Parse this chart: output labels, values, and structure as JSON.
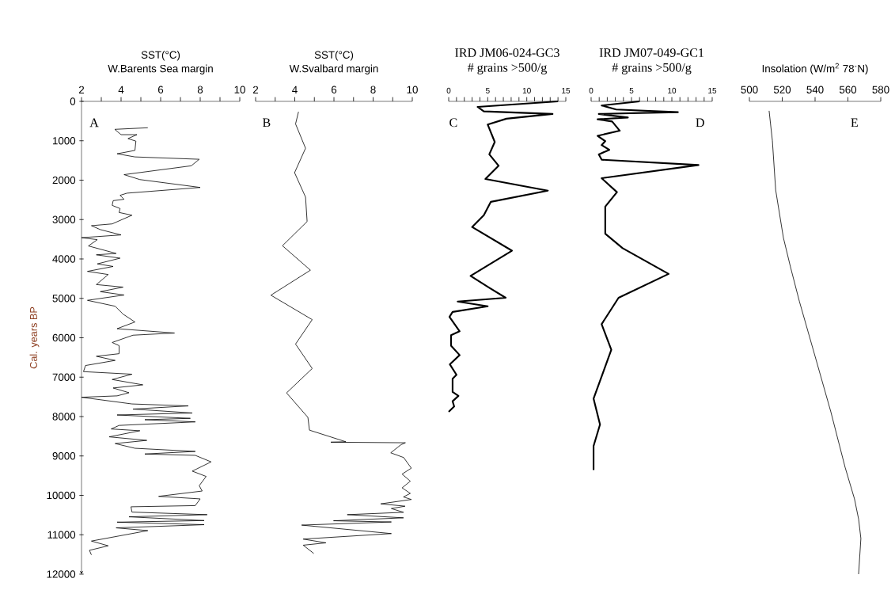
{
  "chart_data": [
    {
      "type": "line",
      "title": "SST(°C)",
      "subtitle": "W.Barents Sea margin",
      "ylabel": "Cal. years BP",
      "annotations": [
        "A"
      ],
      "series": [
        {
          "color": "#000000",
          "x": [
            5.35,
            3.68,
            4.0,
            4.8,
            4.35,
            4.75,
            4.7,
            3.8,
            4.7,
            7.95,
            7.55,
            4.15,
            4.95,
            8.0,
            4.3,
            3.95,
            4.15,
            3.6,
            3.55,
            3.95,
            3.9,
            4.55,
            3.55,
            2.5,
            2.95,
            4.0,
            2.0,
            2.8,
            2.35,
            3.75,
            2.75,
            3.95,
            2.8,
            3.6,
            2.3,
            3.35,
            2.75,
            4.1,
            2.95,
            4.15,
            2.3,
            3.7,
            4.1,
            4.7,
            3.8,
            6.7,
            4.6,
            3.55,
            3.9,
            3.9,
            2.75,
            3.7,
            2.2,
            2.1,
            4.55,
            3.55,
            5.1,
            3.6,
            4.4,
            3.8,
            2.0,
            4.55,
            7.4,
            4.6,
            7.6,
            3.8,
            7.5,
            5.2,
            7.75,
            3.9,
            3.5,
            4.95,
            3.4,
            5.3,
            3.7,
            4.7,
            7.75,
            5.2,
            7.75,
            8.55,
            7.6,
            8.3,
            7.95,
            8.1,
            5.9,
            8.0,
            7.75,
            4.5,
            4.55,
            8.35,
            4.4,
            8.2,
            3.8,
            8.2,
            3.75,
            5.35,
            3.9,
            2.5,
            3.35,
            2.4,
            2.5
          ],
          "values": [
            670,
            710,
            845,
            845,
            945,
            1010,
            1245,
            1330,
            1410,
            1470,
            1635,
            1860,
            1985,
            2185,
            2330,
            2385,
            2485,
            2520,
            2640,
            2720,
            2820,
            2890,
            3110,
            3155,
            3255,
            3390,
            3460,
            3510,
            3670,
            3860,
            3895,
            3980,
            4125,
            4190,
            4315,
            4395,
            4650,
            4715,
            4830,
            4915,
            5050,
            5200,
            5400,
            5600,
            5770,
            5880,
            5935,
            6120,
            6200,
            6405,
            6470,
            6575,
            6705,
            6860,
            6925,
            7060,
            7195,
            7275,
            7395,
            7475,
            7510,
            7680,
            7730,
            7810,
            7910,
            7960,
            8045,
            8080,
            8135,
            8225,
            8315,
            8360,
            8515,
            8605,
            8685,
            8805,
            8885,
            8950,
            8985,
            9150,
            9385,
            9520,
            9755,
            9890,
            10025,
            10090,
            10260,
            10290,
            10425,
            10490,
            10545,
            10640,
            10680,
            10745,
            10825,
            10895,
            11030,
            11160,
            11280,
            11395,
            11510
          ]
        }
      ],
      "xlim": [
        2,
        10
      ],
      "xticks": [
        2,
        {
          "value": 3,
          "label": null
        },
        4,
        {
          "value": 5,
          "label": null
        },
        6,
        {
          "value": 7,
          "label": null
        },
        8,
        {
          "value": 9,
          "label": null
        },
        10
      ],
      "ylim": [
        12000,
        0
      ],
      "yticks": [
        0,
        1000,
        2000,
        3000,
        4000,
        5000,
        6000,
        7000,
        8000,
        9000,
        10000,
        11000,
        12000
      ]
    },
    {
      "type": "line",
      "title": "SST(°C)",
      "subtitle": "W.Svalbard margin",
      "annotations": [
        "B"
      ],
      "series": [
        {
          "color": "#000000",
          "x": [
            4.19,
            4.04,
            4.55,
            3.99,
            4.55,
            4.63,
            3.37,
            4.8,
            2.78,
            4.89,
            4.04,
            4.89,
            3.58,
            4.67,
            4.75,
            6.61,
            5.84,
            9.65,
            9.42,
            8.9,
            9.56,
            9.95,
            9.48,
            9.9,
            9.48,
            9.9,
            9.55,
            9.95,
            8.39,
            9.63,
            8.93,
            9.55,
            6.68,
            9.55,
            5.98,
            8.93,
            4.35,
            8.93,
            4.43,
            5.59,
            4.43,
            4.97
          ],
          "values": [
            265,
            573,
            1190,
            1810,
            2430,
            3050,
            3665,
            4285,
            4920,
            5540,
            6160,
            6780,
            7400,
            8020,
            8345,
            8640,
            8650,
            8665,
            8715,
            8920,
            9040,
            9310,
            9460,
            9640,
            9810,
            9950,
            10040,
            10105,
            10215,
            10275,
            10335,
            10430,
            10490,
            10570,
            10645,
            10675,
            10755,
            10970,
            11110,
            11205,
            11265,
            11475
          ]
        }
      ],
      "xlim": [
        2,
        10
      ],
      "xticks": [
        2,
        {
          "value": 3,
          "label": null
        },
        4,
        {
          "value": 5,
          "label": null
        },
        6,
        {
          "value": 7,
          "label": null
        },
        8,
        {
          "value": 9,
          "label": null
        },
        10
      ],
      "ylim": [
        12000,
        0
      ],
      "tick_labels": "x"
    },
    {
      "type": "line",
      "title": "IRD JM06-024-GC3",
      "subtitle": "# grains >500/g",
      "annotations": [
        "C"
      ],
      "series": [
        {
          "color": "#000000",
          "x": [
            14.0,
            3.7,
            4.5,
            13.3,
            7.4,
            5.0,
            5.9,
            5.2,
            6.4,
            4.7,
            12.7,
            5.4,
            4.5,
            3.0,
            8.1,
            2.8,
            5.2,
            7.3,
            1.15,
            5.0,
            0.5,
            0.1,
            1.4,
            0.3,
            0.3,
            1.4,
            0.15,
            1.0,
            0.5,
            0.5,
            1.25,
            0.5,
            0.7,
            0.0
          ],
          "values": [
            0,
            140,
            255,
            320,
            440,
            590,
            1030,
            1345,
            1635,
            1970,
            2265,
            2550,
            2890,
            3190,
            3790,
            4430,
            4730,
            4985,
            5080,
            5200,
            5345,
            5470,
            5835,
            5935,
            6200,
            6440,
            6675,
            6940,
            7040,
            7375,
            7475,
            7610,
            7745,
            7880
          ]
        }
      ],
      "xlim": [
        0,
        15
      ],
      "xticks": [
        0,
        {
          "value": 1,
          "label": null
        },
        {
          "value": 2,
          "label": null
        },
        {
          "value": 3,
          "label": null
        },
        {
          "value": 4,
          "label": null
        },
        5,
        {
          "value": 6,
          "label": null
        },
        {
          "value": 7,
          "label": null
        },
        {
          "value": 8,
          "label": null
        },
        {
          "value": 9,
          "label": null
        },
        10,
        {
          "value": 11,
          "label": null
        },
        {
          "value": 12,
          "label": null
        },
        {
          "value": 13,
          "label": null
        },
        {
          "value": 14,
          "label": null
        },
        15
      ],
      "ylim": [
        12000,
        0
      ],
      "tick_labels": "x"
    },
    {
      "type": "line",
      "title": "IRD JM07-049-GC1",
      "subtitle": "# grains >500/g",
      "annotations": [
        "D"
      ],
      "series": [
        {
          "color": "#000000",
          "x": [
            6.0,
            1.3,
            3.1,
            10.75,
            0.95,
            4.55,
            0.8,
            2.6,
            3.55,
            0.8,
            1.75,
            1.3,
            2.25,
            0.95,
            1.3,
            13.3,
            1.3,
            3.2,
            1.75,
            1.75,
            3.9,
            9.6,
            3.4,
            1.3,
            2.5,
            0.3,
            1.1,
            0.3,
            0.3
          ],
          "values": [
            0,
            105,
            205,
            275,
            320,
            410,
            455,
            510,
            745,
            875,
            1010,
            1110,
            1230,
            1345,
            1480,
            1615,
            1950,
            2305,
            2670,
            3360,
            3725,
            4380,
            4985,
            5655,
            6305,
            7545,
            8200,
            8750,
            9355
          ]
        }
      ],
      "xlim": [
        0,
        15
      ],
      "xticks": [
        0,
        {
          "value": 1,
          "label": null
        },
        {
          "value": 2,
          "label": null
        },
        {
          "value": 3,
          "label": null
        },
        {
          "value": 4,
          "label": null
        },
        5,
        {
          "value": 6,
          "label": null
        },
        {
          "value": 7,
          "label": null
        },
        {
          "value": 8,
          "label": null
        },
        {
          "value": 9,
          "label": null
        },
        10,
        {
          "value": 11,
          "label": null
        },
        {
          "value": 12,
          "label": null
        },
        {
          "value": 13,
          "label": null
        },
        {
          "value": 14,
          "label": null
        },
        15
      ],
      "ylim": [
        12000,
        0
      ],
      "tick_labels": "x"
    },
    {
      "type": "line",
      "title": "Insolation (W/m$^{2}$ 78$^{-}$N)",
      "annotations": [
        "E"
      ],
      "series": [
        {
          "color": "#000000",
          "x": [
            512,
            514,
            516,
            520.7,
            525,
            530.4,
            540,
            549.6,
            558.3,
            564,
            566.5,
            567.9,
            566.5
          ],
          "values": [
            240,
            1000,
            2250,
            3460,
            4200,
            5070,
            6470,
            7880,
            9290,
            10090,
            10600,
            11095,
            12000
          ]
        }
      ],
      "xlim": [
        500,
        580
      ],
      "xticks": [
        500,
        520,
        540,
        560,
        580
      ],
      "ylim": [
        12000,
        0
      ],
      "tick_labels": "x"
    }
  ]
}
